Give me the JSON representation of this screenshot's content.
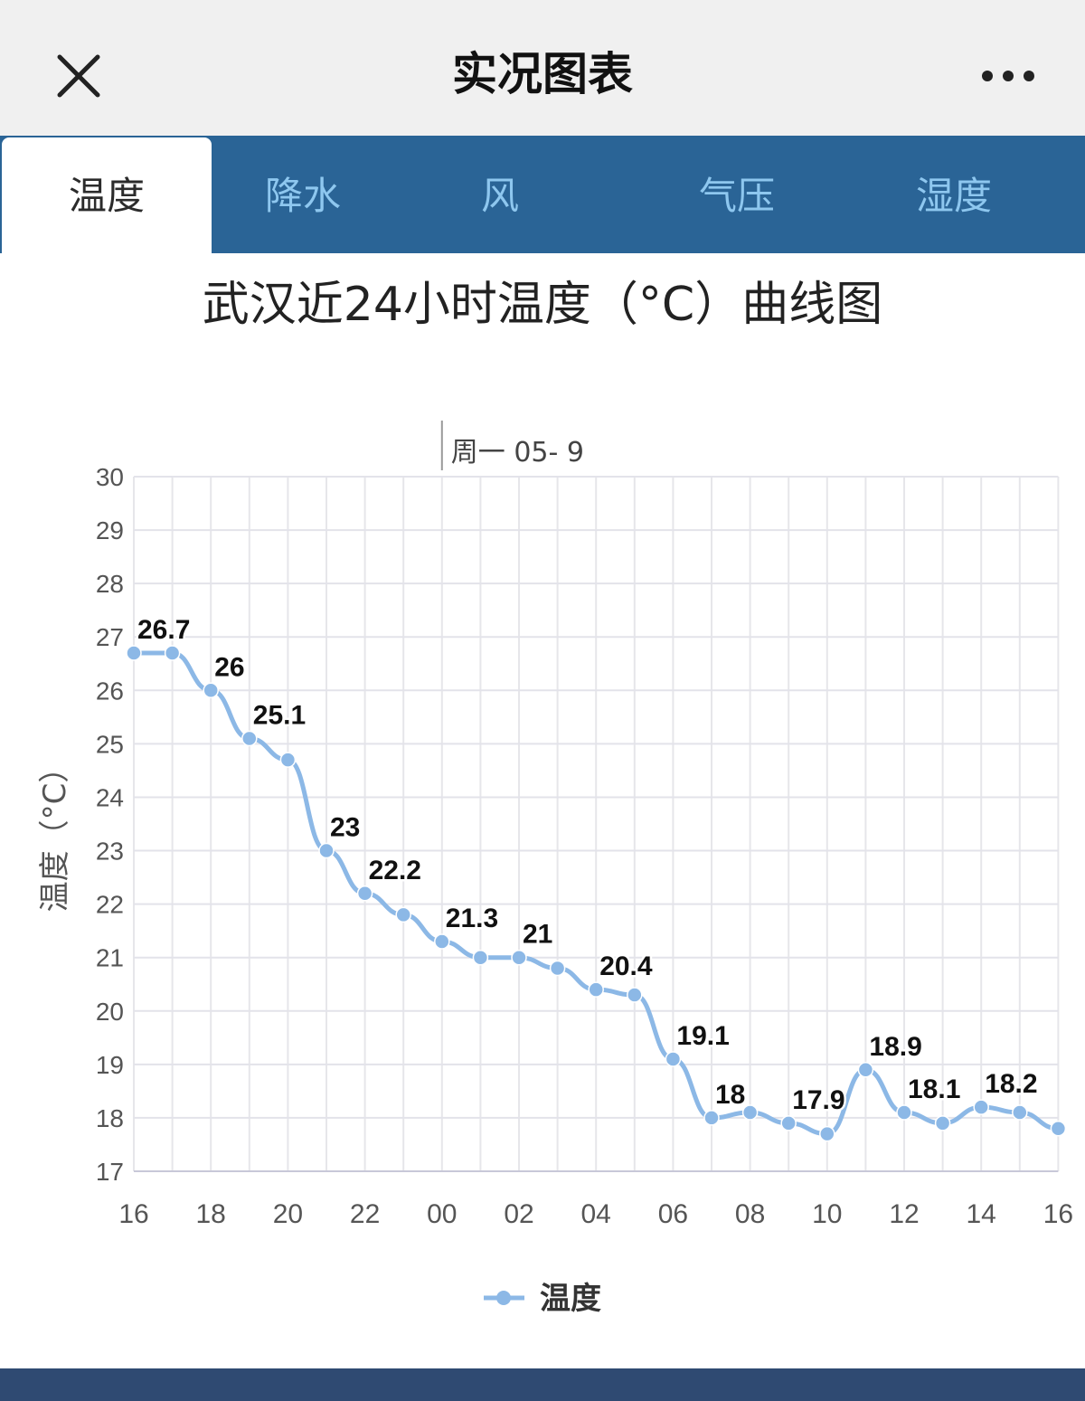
{
  "header": {
    "title": "实况图表",
    "close_icon": "close-icon",
    "more_icon": "more-icon"
  },
  "tabs": [
    {
      "label": "温度",
      "active": true
    },
    {
      "label": "降水",
      "active": false
    },
    {
      "label": "风",
      "active": false
    },
    {
      "label": "气压",
      "active": false
    },
    {
      "label": "湿度",
      "active": false
    }
  ],
  "colors": {
    "tab_bar": "#2a6496",
    "tab_inactive_text": "#8ec7ef",
    "series": "#8cb8e6",
    "footer": "#2f4a72"
  },
  "chart_data": {
    "type": "line",
    "title": "武汉近24小时温度（°C）曲线图",
    "ylabel": "温度（°C）",
    "date_marker": "周一 05- 9",
    "ylim": [
      17,
      30
    ],
    "yticks": [
      17,
      18,
      19,
      20,
      21,
      22,
      23,
      24,
      25,
      26,
      27,
      28,
      29,
      30
    ],
    "x_tick_labels": [
      "16",
      "18",
      "20",
      "22",
      "00",
      "02",
      "04",
      "06",
      "08",
      "10",
      "12",
      "14",
      "16"
    ],
    "x": [
      "16",
      "17",
      "18",
      "19",
      "20",
      "21",
      "22",
      "23",
      "00",
      "01",
      "02",
      "03",
      "04",
      "05",
      "06",
      "07",
      "08",
      "09",
      "10",
      "11",
      "12",
      "13",
      "14",
      "15",
      "16"
    ],
    "grid": true,
    "legend_position": "bottom-center",
    "series": [
      {
        "name": "温度",
        "values": [
          26.7,
          26.7,
          26,
          25.1,
          24.7,
          23,
          22.2,
          21.8,
          21.3,
          21,
          21,
          20.8,
          20.4,
          20.3,
          19.1,
          18,
          18.1,
          17.9,
          17.7,
          18.9,
          18.1,
          17.9,
          18.2,
          18.1,
          17.8
        ],
        "data_labels": [
          "26.7",
          "",
          "26",
          "25.1",
          "",
          "23",
          "22.2",
          "",
          "21.3",
          "",
          "21",
          "",
          "20.4",
          "",
          "19.1",
          "18",
          "",
          "17.9",
          "",
          "18.9",
          "18.1",
          "",
          "18.2",
          "",
          ""
        ]
      }
    ]
  }
}
